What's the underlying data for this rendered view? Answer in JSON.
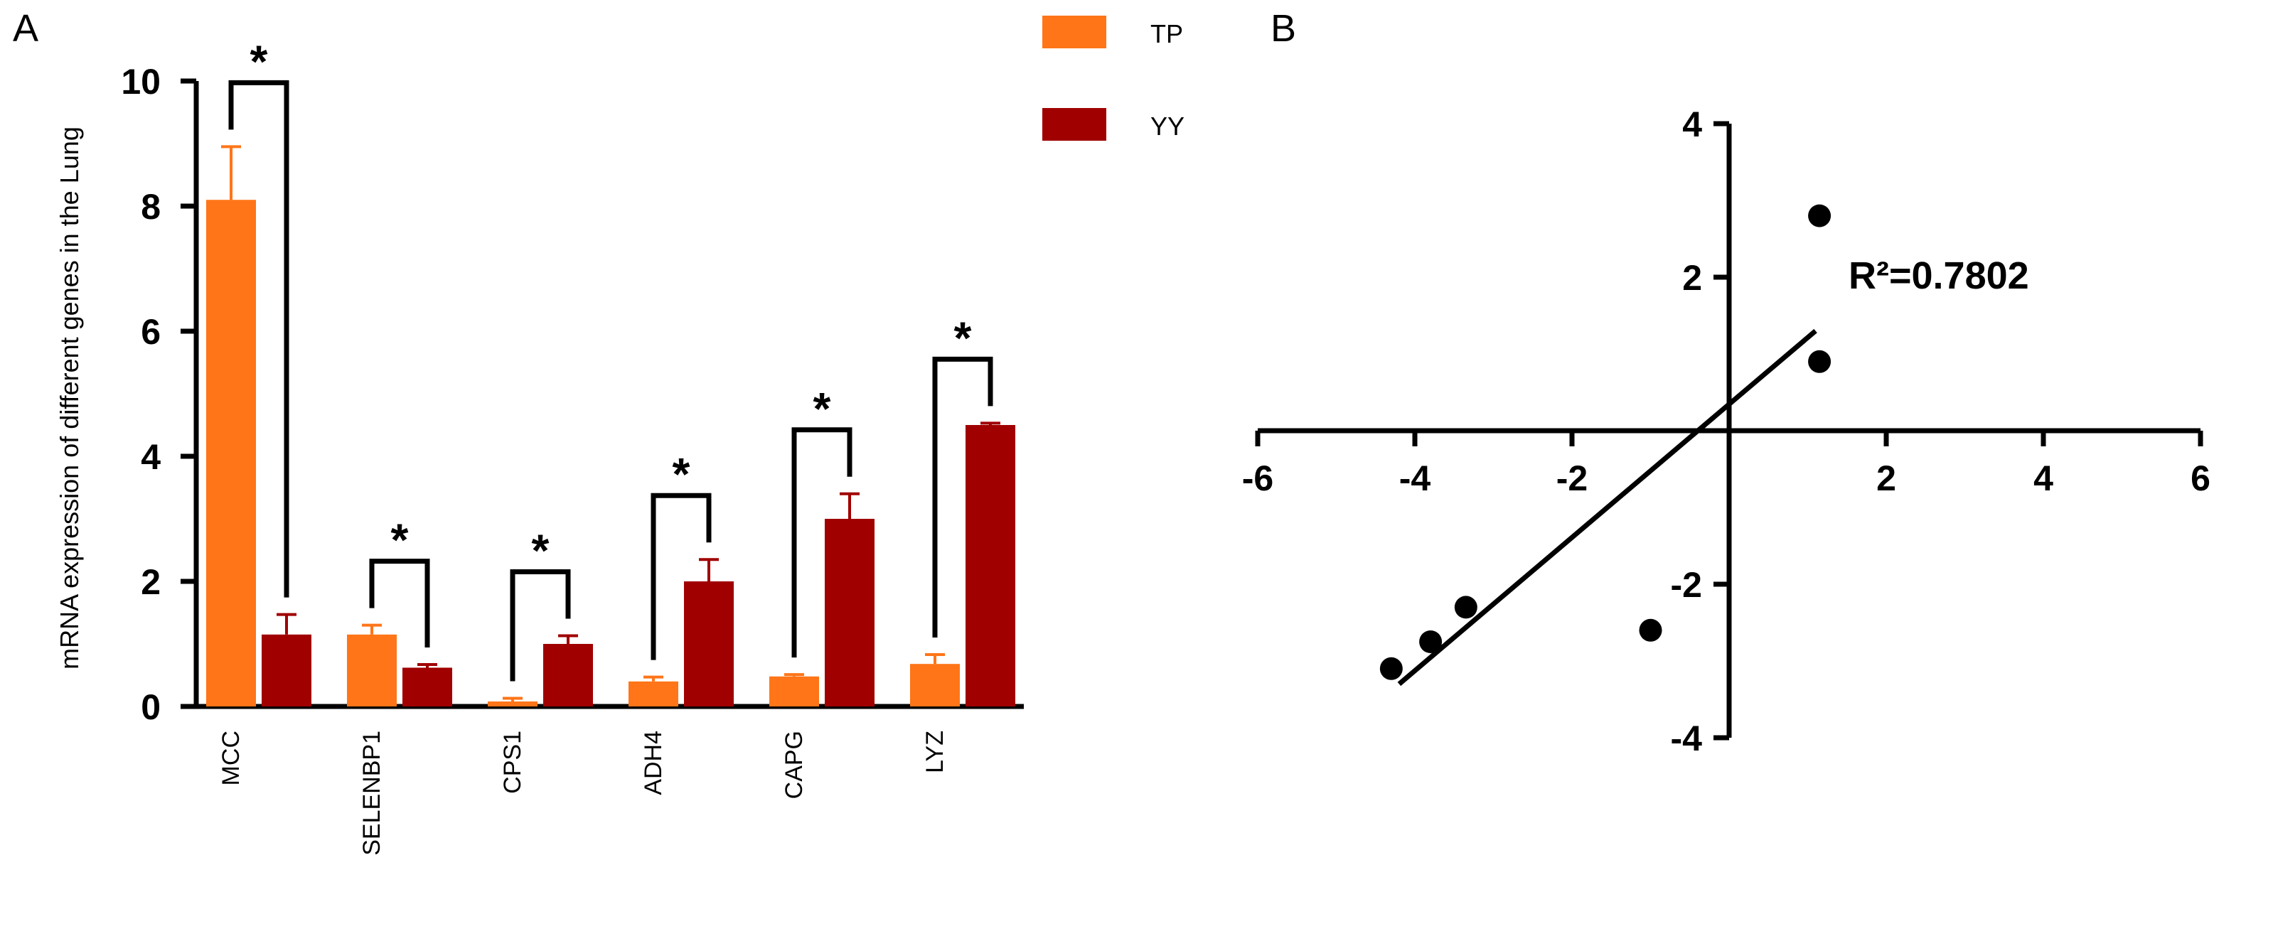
{
  "panels": {
    "a": "A",
    "b": "B"
  },
  "colors": {
    "tp": "#FF7518",
    "yy": "#A00000"
  },
  "chart_data": [
    {
      "type": "bar",
      "panel": "A",
      "title": "",
      "xlabel": "",
      "ylabel": "mRNA expression of different genes in the Lung",
      "ylim": [
        0,
        10
      ],
      "yticks": [
        0,
        2,
        4,
        6,
        8,
        10
      ],
      "ytick_labels": [
        "0",
        "2",
        "4",
        "6",
        "8",
        "10"
      ],
      "categories": [
        "MCC",
        "SELENBP1",
        "CPS1",
        "ADH4",
        "CAPG",
        "LYZ"
      ],
      "series": [
        {
          "name": "TP",
          "color": "#FF7518",
          "values": [
            8.1,
            1.15,
            0.08,
            0.4,
            0.48,
            0.68
          ],
          "errors": [
            0.85,
            0.15,
            0.05,
            0.07,
            0.03,
            0.15
          ]
        },
        {
          "name": "YY",
          "color": "#A00000",
          "values": [
            1.15,
            0.62,
            1.0,
            2.0,
            3.0,
            4.5
          ],
          "errors": [
            0.32,
            0.05,
            0.13,
            0.35,
            0.4,
            0.03
          ]
        }
      ],
      "significance": [
        "*",
        "*",
        "*",
        "*",
        "*",
        "*"
      ],
      "legend": {
        "position": "top-right",
        "entries": [
          "TP",
          "YY"
        ]
      }
    },
    {
      "type": "scatter",
      "panel": "B",
      "xlim": [
        -6,
        6
      ],
      "ylim": [
        -4,
        4
      ],
      "xticks": [
        -6,
        -4,
        -2,
        2,
        4,
        6
      ],
      "xtick_labels": [
        "-6",
        "-4",
        "-2",
        "2",
        "4",
        "6"
      ],
      "yticks": [
        4,
        2,
        -2,
        -4
      ],
      "ytick_labels": [
        "4",
        "2",
        "-2",
        "-4"
      ],
      "points": [
        {
          "x": -4.3,
          "y": -3.1
        },
        {
          "x": -3.8,
          "y": -2.75
        },
        {
          "x": -3.35,
          "y": -2.3
        },
        {
          "x": -1.0,
          "y": -2.6
        },
        {
          "x": 1.15,
          "y": 2.8
        },
        {
          "x": 1.15,
          "y": 0.9
        }
      ],
      "fit_line": {
        "x_start": -4.2,
        "y_start": -3.3,
        "x_end": 1.1,
        "y_end": 1.3
      },
      "annotation": "R²=0.7802"
    }
  ]
}
